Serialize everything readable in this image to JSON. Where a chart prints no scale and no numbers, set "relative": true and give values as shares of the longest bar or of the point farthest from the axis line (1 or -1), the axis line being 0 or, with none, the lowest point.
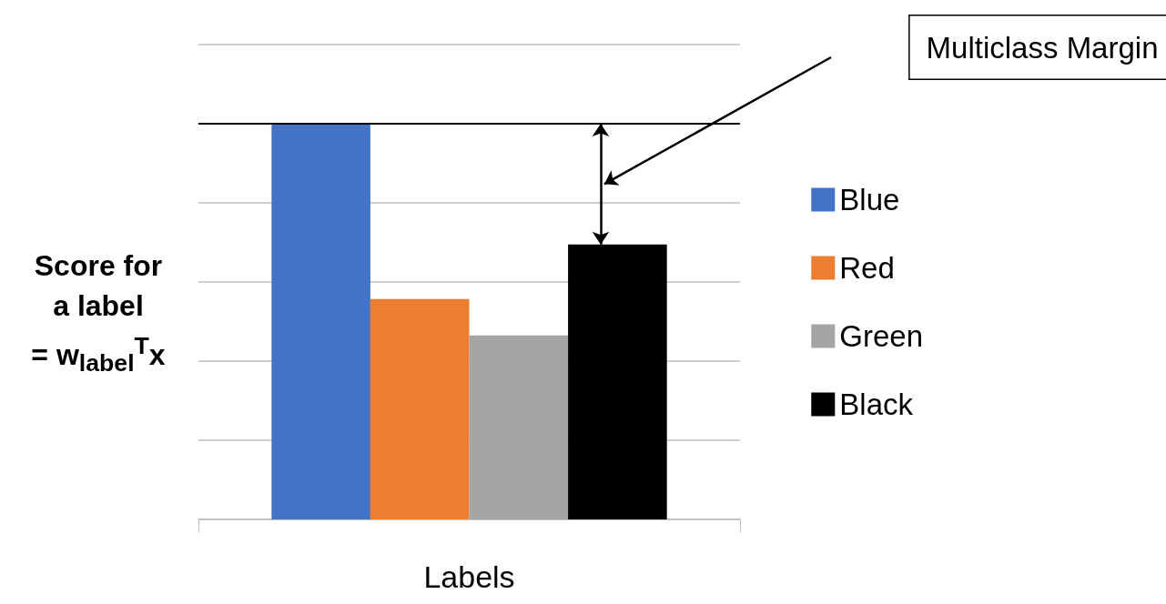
{
  "chart_data": {
    "type": "bar",
    "relative": true,
    "categories": [
      null
    ],
    "xlabel": "Labels",
    "ylabel": "Score for\na label\n= w$_{label}$$^{T}$x",
    "series": [
      {
        "name": "Blue",
        "color": "#4472c4",
        "values": [
          1
        ]
      },
      {
        "name": "Red",
        "color": "#ed7d31",
        "values": [
          0.557
        ]
      },
      {
        "name": "Green",
        "color": "#a5a5a5",
        "values": [
          0.465
        ]
      },
      {
        "name": "Black",
        "color": "#000000",
        "values": [
          0.695
        ]
      }
    ],
    "ref_lines": [
      {
        "axis": "y",
        "value": 1,
        "color": "#000000"
      }
    ],
    "annotations": [
      "Multiclass Margin"
    ],
    "grid": "y",
    "legend": "right"
  }
}
